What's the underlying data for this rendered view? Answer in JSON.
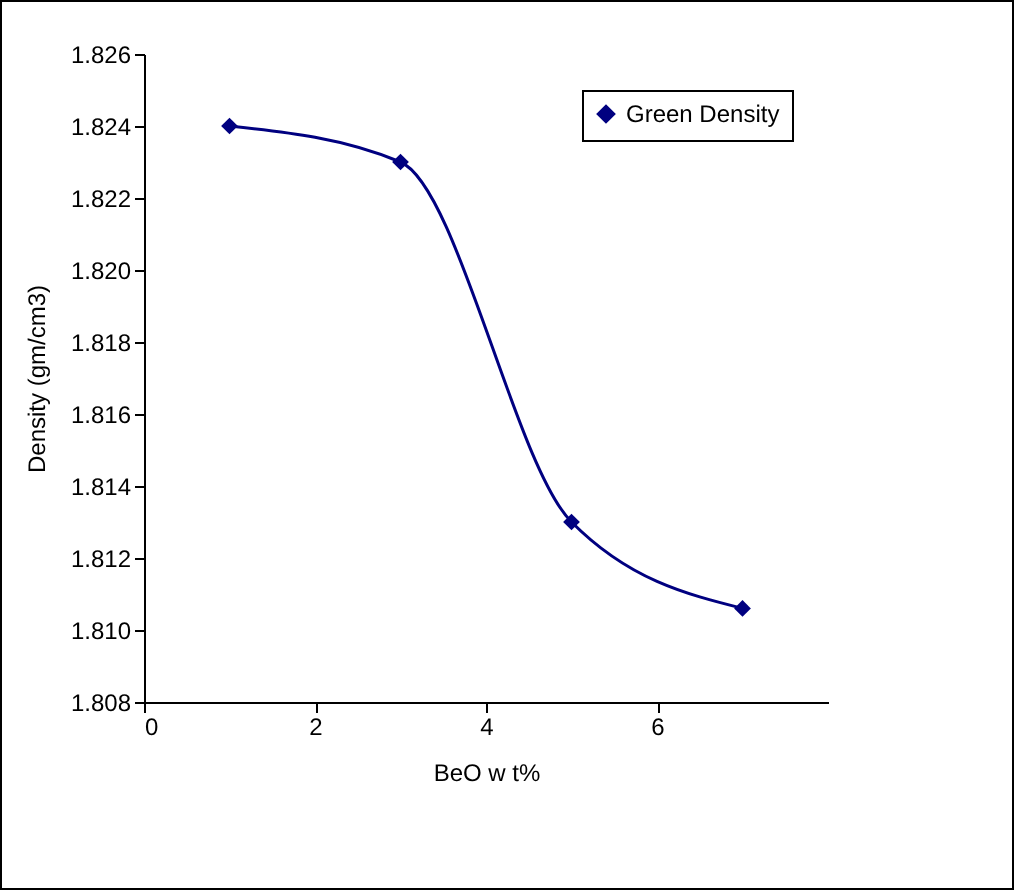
{
  "chart_data": {
    "type": "line",
    "xlabel": "BeO w t%",
    "ylabel": "Density (gm/cm3)",
    "x": [
      1,
      3,
      5,
      7
    ],
    "series": [
      {
        "name": "Green Density",
        "color": "#000080",
        "values": [
          1.824,
          1.823,
          1.813,
          1.8106
        ]
      }
    ],
    "xlim": [
      0,
      8
    ],
    "xticks": [
      0,
      2,
      4,
      6
    ],
    "ylim": [
      1.808,
      1.826
    ],
    "yticks": [
      {
        "value": 1.808,
        "label": "1.808"
      },
      {
        "value": 1.81,
        "label": "1.810"
      },
      {
        "value": 1.812,
        "label": "1.812"
      },
      {
        "value": 1.814,
        "label": "1.814"
      },
      {
        "value": 1.816,
        "label": "1.816"
      },
      {
        "value": 1.818,
        "label": "1.818"
      },
      {
        "value": 1.82,
        "label": "1.820"
      },
      {
        "value": 1.822,
        "label": "1.822"
      },
      {
        "value": 1.824,
        "label": "1.824"
      },
      {
        "value": 1.826,
        "label": "1.826"
      }
    ],
    "grid": false,
    "legend": "top right",
    "marker": "diamond",
    "line_style": "solid"
  }
}
